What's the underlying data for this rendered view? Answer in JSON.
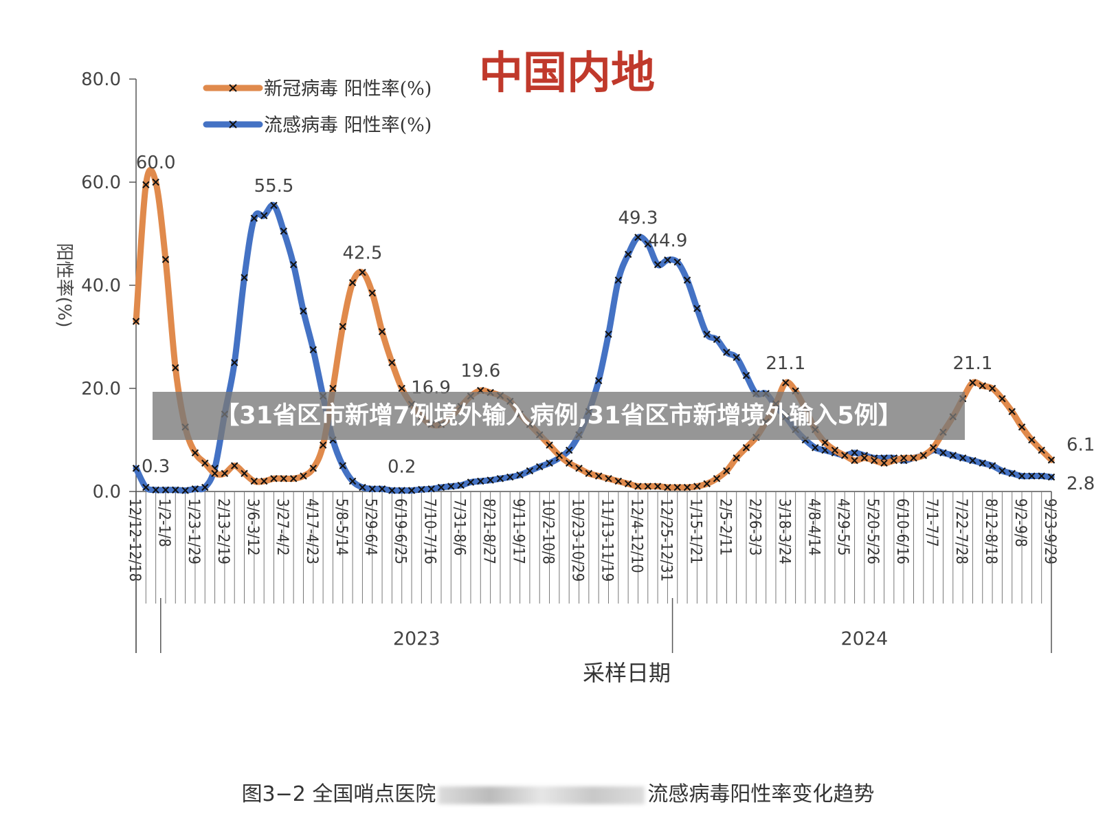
{
  "caption": {
    "left": "图3−2 全国哨点医院",
    "right": "流感病毒阳性率变化趋势"
  },
  "banner": {
    "text": "【31省区市新增7例境外输入病例,31省区市新增境外输入5例】"
  },
  "chart_data": {
    "type": "line",
    "title": "中国内地",
    "ylabel": "阳性率(%)",
    "xlabel": "采样日期",
    "ylim": [
      0,
      80
    ],
    "yticks": [
      "0.0",
      "20.0",
      "40.0",
      "60.0",
      "80.0"
    ],
    "x": [
      "12/12-12/18",
      "12/19-12/25",
      "12/26-1/1",
      "1/2-1/8",
      "1/9-1/15",
      "1/16-1/22",
      "1/23-1/29",
      "1/30-2/5",
      "2/6-2/12",
      "2/13-2/19",
      "2/20-2/26",
      "2/27-3/5",
      "3/6-3/12",
      "3/13-3/19",
      "3/20-3/26",
      "3/27-4/2",
      "4/3-4/9",
      "4/10-4/16",
      "4/17-4/23",
      "4/24-4/30",
      "5/1-5/7",
      "5/8-5/14",
      "5/15-5/21",
      "5/22-5/28",
      "5/29-6/4",
      "6/5-6/11",
      "6/12-6/18",
      "6/19-6/25",
      "6/26-7/2",
      "7/3-7/9",
      "7/10-7/16",
      "7/17-7/23",
      "7/24-7/30",
      "7/31-8/6",
      "8/7-8/13",
      "8/14-8/20",
      "8/21-8/27",
      "8/28-9/3",
      "9/4-9/10",
      "9/11-9/17",
      "9/18-9/24",
      "9/25-10/1",
      "10/2-10/8",
      "10/9-10/15",
      "10/16-10/22",
      "10/23-10/29",
      "10/30-11/5",
      "11/6-11/12",
      "11/13-11/19",
      "11/20-11/26",
      "11/27-12/3",
      "12/4-12/10",
      "12/11-12/17",
      "12/18-12/24",
      "12/25-12/31",
      "1/1-1/7",
      "1/8-1/14",
      "1/15-1/21",
      "1/22-1/28",
      "1/29-2/4",
      "2/5-2/11",
      "2/12-2/18",
      "2/19-2/25",
      "2/26-3/3",
      "3/4-3/10",
      "3/11-3/17",
      "3/18-3/24",
      "3/25-3/31",
      "4/1-4/7",
      "4/8-4/14",
      "4/15-4/21",
      "4/22-4/28",
      "4/29-5/5",
      "5/6-5/12",
      "5/13-5/19",
      "5/20-5/26",
      "5/27-6/2",
      "6/3-6/9",
      "6/10-6/16",
      "6/17-6/23",
      "6/24-6/30",
      "7/1-7/7",
      "7/8-7/14",
      "7/15-7/21",
      "7/22-7/28",
      "7/29-8/4",
      "8/5-8/11",
      "8/12-8/18",
      "8/19-8/25",
      "8/26-9/1",
      "9/2-9/8",
      "9/9-9/15",
      "9/16-9/22",
      "9/23-9/29"
    ],
    "tick_labels": [
      "12/12-12/18",
      "1/2-1/8",
      "1/23-1/29",
      "2/13-2/19",
      "3/6-3/12",
      "3/27-4/2",
      "4/17-4/23",
      "5/8-5/14",
      "5/29-6/4",
      "6/19-6/25",
      "7/10-7/16",
      "7/31-8/6",
      "8/21-8/27",
      "9/11-9/17",
      "10/2-10/8",
      "10/23-10/29",
      "11/13-11/19",
      "12/4-12/10",
      "12/25-12/31",
      "1/15-1/21",
      "2/5-2/11",
      "2/26-3/3",
      "3/18-3/24",
      "4/8-4/14",
      "4/29-5/5",
      "5/20-5/26",
      "6/10-6/16",
      "7/1-7/7",
      "7/22-7/28",
      "8/12-8/18",
      "9/2-9/8",
      "9/23-9/29"
    ],
    "years": [
      {
        "label": "2023",
        "from": "1/2-1/8",
        "to": "12/25-12/31"
      },
      {
        "label": "2024",
        "from": "1/1-1/7",
        "to": "9/23-9/29"
      }
    ],
    "legend_position": "top-left",
    "series": [
      {
        "name": "新冠病毒 阳性率(%)",
        "color": "#E08A4C",
        "values": [
          33.0,
          59.5,
          60.0,
          45.0,
          24.0,
          12.5,
          7.5,
          5.5,
          3.5,
          3.5,
          5.0,
          3.5,
          2.0,
          2.0,
          2.5,
          2.5,
          2.5,
          3.0,
          4.5,
          9.0,
          20.0,
          32.0,
          40.5,
          42.5,
          38.5,
          31.0,
          25.0,
          20.0,
          16.9,
          14.5,
          13.0,
          13.0,
          14.5,
          16.5,
          18.5,
          19.6,
          19.2,
          18.6,
          17.5,
          15.0,
          13.0,
          11.0,
          9.0,
          7.0,
          5.5,
          4.5,
          3.5,
          3.0,
          2.5,
          2.0,
          1.5,
          1.0,
          1.0,
          1.0,
          0.8,
          0.8,
          0.8,
          1.0,
          1.5,
          2.5,
          4.0,
          6.5,
          8.5,
          10.5,
          13.5,
          17.0,
          21.1,
          19.5,
          16.0,
          12.0,
          9.5,
          8.0,
          7.0,
          6.0,
          6.5,
          6.0,
          5.5,
          6.0,
          6.5,
          6.5,
          7.0,
          8.5,
          11.5,
          14.5,
          18.0,
          21.1,
          20.5,
          20.0,
          18.0,
          15.5,
          12.5,
          10.0,
          8.0,
          6.1
        ]
      },
      {
        "name": "流感病毒 阳性率(%)",
        "color": "#4472C4",
        "values": [
          4.5,
          0.8,
          0.3,
          0.3,
          0.3,
          0.2,
          0.5,
          0.8,
          4.5,
          15.0,
          25.0,
          41.5,
          53.0,
          53.5,
          55.5,
          50.5,
          44.0,
          35.0,
          27.5,
          18.5,
          10.0,
          5.0,
          2.0,
          0.8,
          0.5,
          0.5,
          0.2,
          0.2,
          0.2,
          0.4,
          0.5,
          0.8,
          1.0,
          1.2,
          1.8,
          2.0,
          2.2,
          2.5,
          2.8,
          3.2,
          4.0,
          4.8,
          5.5,
          6.5,
          8.0,
          11.0,
          15.5,
          21.5,
          30.5,
          41.0,
          46.0,
          49.3,
          48.0,
          44.0,
          44.9,
          44.5,
          41.0,
          35.5,
          30.5,
          29.5,
          27.0,
          26.0,
          22.5,
          19.0,
          19.0,
          16.5,
          14.5,
          12.0,
          10.0,
          8.5,
          8.0,
          7.5,
          7.0,
          7.5,
          7.0,
          6.5,
          6.5,
          6.5,
          6.0,
          6.5,
          7.0,
          8.0,
          7.5,
          7.0,
          6.5,
          6.0,
          5.5,
          5.0,
          4.0,
          3.5,
          3.0,
          3.0,
          3.0,
          2.8
        ]
      }
    ],
    "annotations": [
      {
        "series": 0,
        "x": "12/26-1/1",
        "text": "60.0"
      },
      {
        "series": 1,
        "x": "3/20-3/26",
        "text": "55.5"
      },
      {
        "series": 0,
        "x": "5/22-5/28",
        "text": "42.5"
      },
      {
        "series": 0,
        "x": "6/26-7/2",
        "text": "16.9"
      },
      {
        "series": 0,
        "x": "8/14-8/20",
        "text": "19.6"
      },
      {
        "series": 1,
        "x": "12/4-12/10",
        "text": "49.3"
      },
      {
        "series": 1,
        "x": "12/25-12/31",
        "text": "44.9"
      },
      {
        "series": 0,
        "x": "3/18-3/24",
        "text": "21.1"
      },
      {
        "series": 0,
        "x": "7/29-8/4",
        "text": "21.1"
      },
      {
        "series": 0,
        "x": "9/23-9/29",
        "text": "6.1"
      },
      {
        "series": 1,
        "x": "9/23-9/29",
        "text": "2.8"
      },
      {
        "series": 1,
        "x": "12/26-1/1",
        "text": "0.3"
      },
      {
        "series": 1,
        "x": "6/19-6/25",
        "text": "0.2"
      }
    ]
  }
}
